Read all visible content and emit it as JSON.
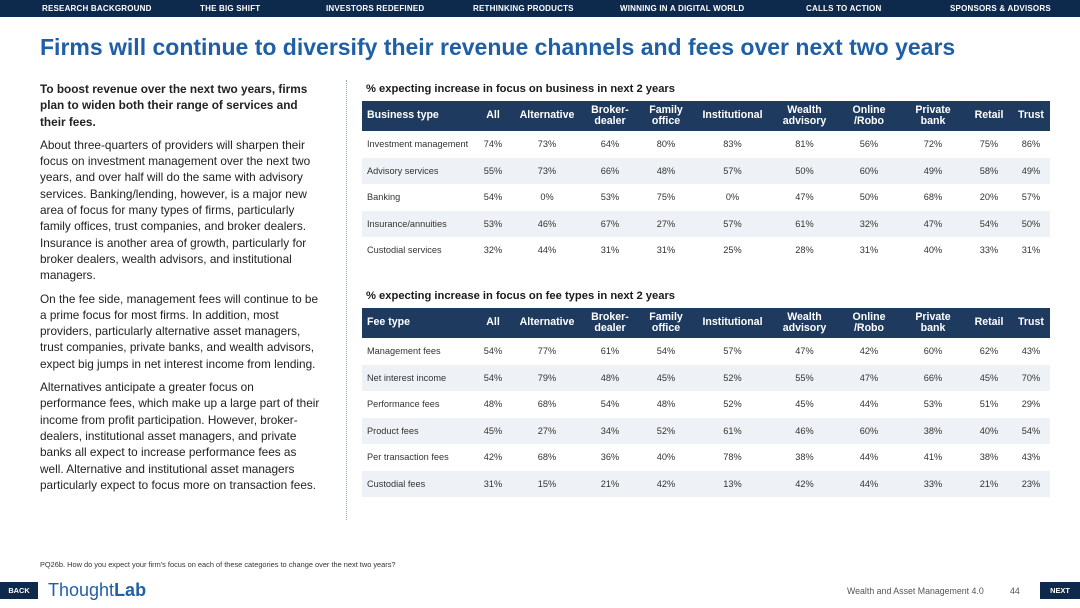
{
  "nav": {
    "items": [
      "RESEARCH BACKGROUND",
      "THE BIG SHIFT",
      "INVESTORS REDEFINED",
      "RETHINKING PRODUCTS",
      "WINNING IN A DIGITAL WORLD",
      "CALLS TO ACTION",
      "SPONSORS & ADVISORS"
    ]
  },
  "title": "Firms will continue to diversify their revenue channels and fees over next two years",
  "body": {
    "intro": "To boost revenue over the next two years, firms plan to widen both their range of services and their fees.",
    "p1": "About three-quarters of providers will sharpen their focus on investment management over the next two years, and over half will do the same with advisory services. Banking/lending, however, is a major new area of focus for many types of firms, particularly family offices, trust companies, and broker dealers. Insurance is another area of growth, particularly for broker dealers, wealth advisors, and institutional managers.",
    "p2": "On the fee side, management fees will continue to be a prime focus for most firms. In addition, most providers, particularly alternative asset managers, trust companies, private banks, and wealth advisors, expect big jumps in net interest income from lending.",
    "p3": "Alternatives anticipate a greater focus on performance fees, which make up a large part of their income from profit participation. However, broker-dealers, institutional asset managers, and private banks all expect to increase performance fees as well. Alternative and institutional asset managers particularly expect to focus more on transaction fees."
  },
  "table1": {
    "title": "% expecting increase in focus on business in next 2 years",
    "headers": [
      "Business type",
      "All",
      "Alternative",
      "Broker-dealer",
      "Family office",
      "Institutional",
      "Wealth advisory",
      "Online /Robo",
      "Private bank",
      "Retail",
      "Trust"
    ],
    "rows": [
      [
        "Investment management",
        "74%",
        "73%",
        "64%",
        "80%",
        "83%",
        "81%",
        "56%",
        "72%",
        "75%",
        "86%"
      ],
      [
        "Advisory services",
        "55%",
        "73%",
        "66%",
        "48%",
        "57%",
        "50%",
        "60%",
        "49%",
        "58%",
        "49%"
      ],
      [
        "Banking",
        "54%",
        "0%",
        "53%",
        "75%",
        "0%",
        "47%",
        "50%",
        "68%",
        "20%",
        "57%"
      ],
      [
        "Insurance/annuities",
        "53%",
        "46%",
        "67%",
        "27%",
        "57%",
        "61%",
        "32%",
        "47%",
        "54%",
        "50%"
      ],
      [
        "Custodial services",
        "32%",
        "44%",
        "31%",
        "31%",
        "25%",
        "28%",
        "31%",
        "40%",
        "33%",
        "31%"
      ]
    ]
  },
  "table2": {
    "title": "% expecting increase in focus on fee types in next 2 years",
    "headers": [
      "Fee type",
      "All",
      "Alternative",
      "Broker-dealer",
      "Family office",
      "Institutional",
      "Wealth advisory",
      "Online /Robo",
      "Private bank",
      "Retail",
      "Trust"
    ],
    "rows": [
      [
        "Management fees",
        "54%",
        "77%",
        "61%",
        "54%",
        "57%",
        "47%",
        "42%",
        "60%",
        "62%",
        "43%"
      ],
      [
        "Net interest income",
        "54%",
        "79%",
        "48%",
        "45%",
        "52%",
        "55%",
        "47%",
        "66%",
        "45%",
        "70%"
      ],
      [
        "Performance fees",
        "48%",
        "68%",
        "54%",
        "48%",
        "52%",
        "45%",
        "44%",
        "53%",
        "51%",
        "29%"
      ],
      [
        "Product fees",
        "45%",
        "27%",
        "34%",
        "52%",
        "61%",
        "46%",
        "60%",
        "38%",
        "40%",
        "54%"
      ],
      [
        "Per transaction fees",
        "42%",
        "68%",
        "36%",
        "40%",
        "78%",
        "38%",
        "44%",
        "41%",
        "38%",
        "43%"
      ],
      [
        "Custodial fees",
        "31%",
        "15%",
        "21%",
        "42%",
        "13%",
        "42%",
        "44%",
        "33%",
        "21%",
        "23%"
      ]
    ]
  },
  "footnote": "PQ26b. How do you expect your firm's focus on each of these categories to change over the next two years?",
  "footer": {
    "back": "BACK",
    "next": "NEXT",
    "logo_a": "Thought",
    "logo_b": "Lab",
    "report": "Wealth and Asset Management 4.0",
    "page": "44"
  }
}
